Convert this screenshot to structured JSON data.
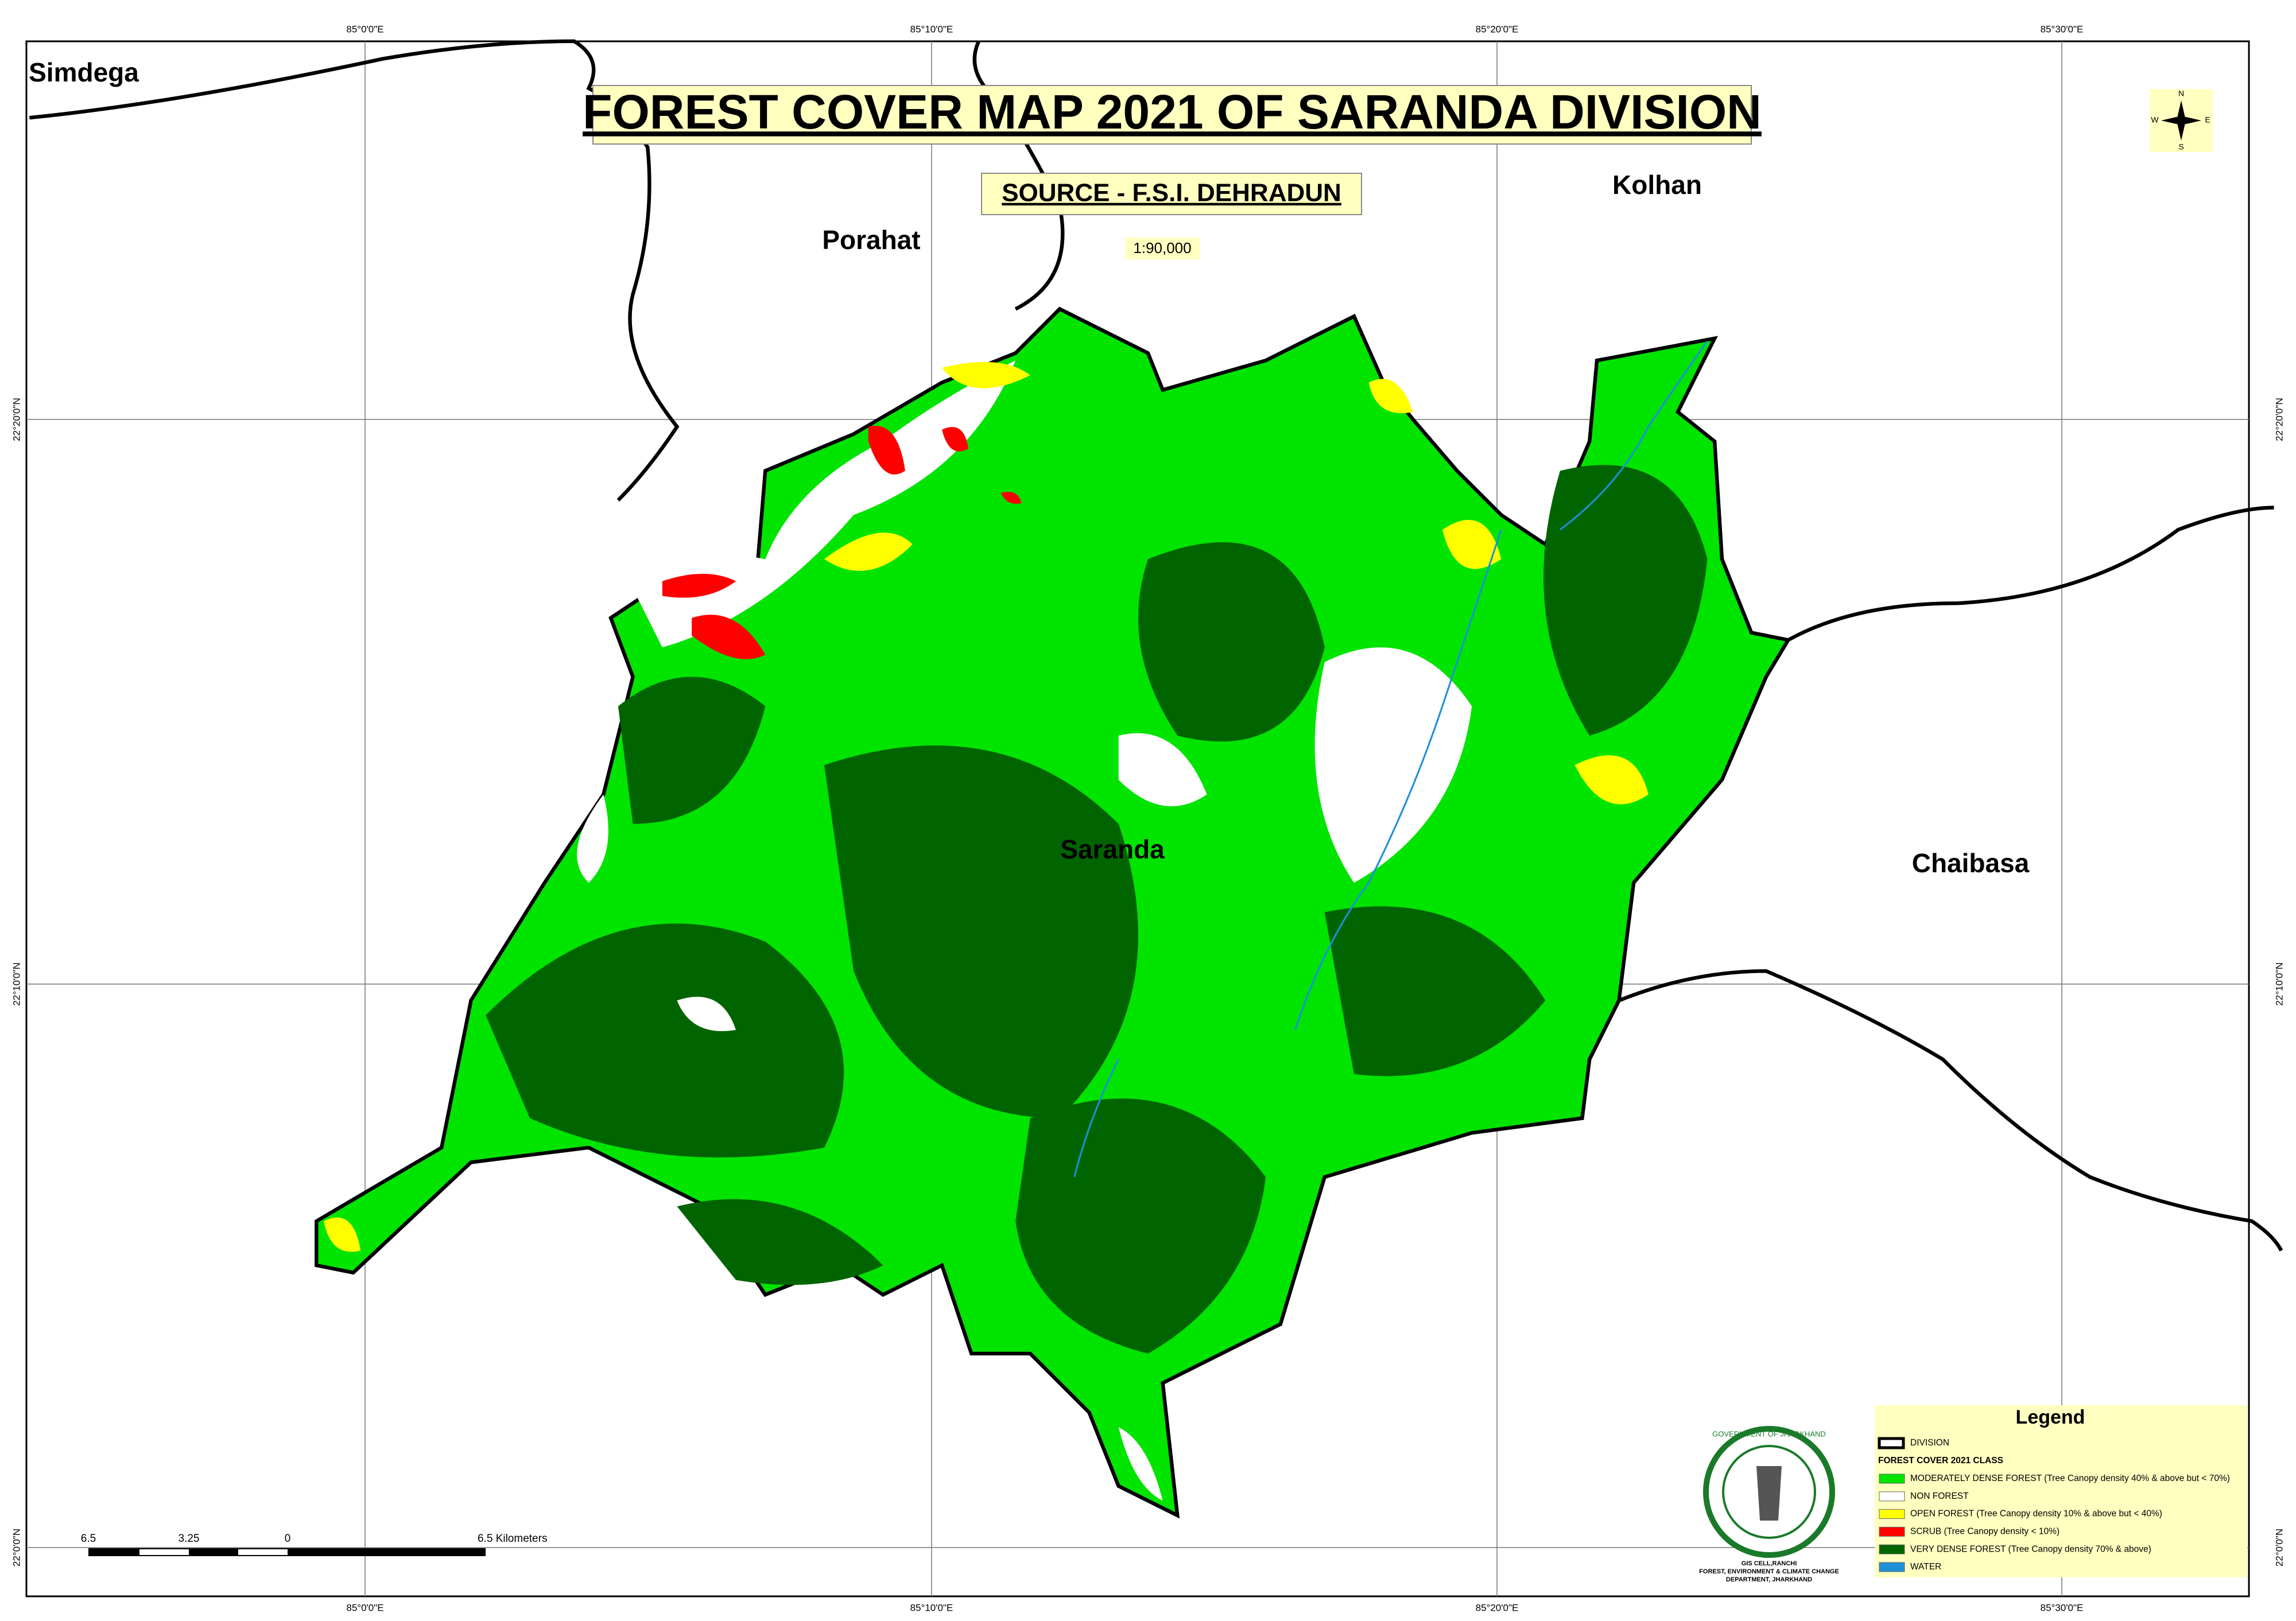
{
  "title": "FOREST COVER MAP 2021  OF SARANDA DIVISION",
  "source": "SOURCE - F.S.I. DEHRADUN",
  "scale": "1:90,000",
  "regions": [
    "Simdega",
    "Porahat",
    "Kolhan",
    "Saranda",
    "Chaibasa"
  ],
  "grid_labels": {
    "longitude": [
      "85°0'0\"E",
      "85°10'0\"E",
      "85°20'0\"E",
      "85°30'0\"E"
    ],
    "latitude": [
      "22°20'0\"N",
      "22°10'0\"N",
      "22°0'0\"N"
    ]
  },
  "north_arrow": {
    "N": "N",
    "E": "E",
    "S": "S",
    "W": "W"
  },
  "scale_bar": {
    "labels": [
      "6.5",
      "3.25",
      "0",
      "6.5 Kilometers"
    ]
  },
  "emblem": {
    "ring": "GOVERNMENT OF JHARKHAND",
    "lines": [
      "GIS CELL,RANCHI",
      "FOREST, ENVIRONMENT & CLIMATE CHANGE",
      "DEPARTMENT, JHARKHAND"
    ]
  },
  "legend": {
    "title": "Legend",
    "division": "DIVISION",
    "class_heading": "FOREST COVER 2021 CLASS",
    "items": [
      {
        "label": "MODERATELY DENSE FOREST (Tree Canopy density 40% & above but < 70%)",
        "color": "#00e400"
      },
      {
        "label": "NON FOREST",
        "color": "#ffffff"
      },
      {
        "label": "OPEN FOREST (Tree Canopy density 10% & above but < 40%)",
        "color": "#ffff00"
      },
      {
        "label": "SCRUB (Tree Canopy density < 10%)",
        "color": "#ff0000"
      },
      {
        "label": "VERY DENSE FOREST (Tree Canopy density 70% & above)",
        "color": "#006400"
      },
      {
        "label": "WATER",
        "color": "#1e90d8"
      }
    ]
  }
}
